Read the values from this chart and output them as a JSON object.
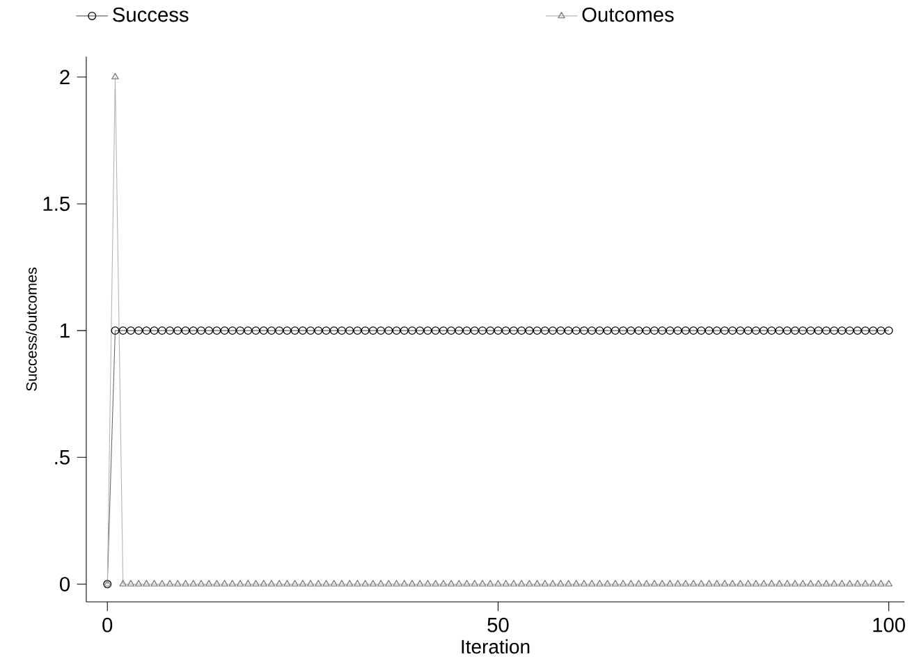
{
  "chart_data": {
    "type": "line",
    "xlabel": "Iteration",
    "ylabel": "Success/outcomes",
    "x": [
      0,
      1,
      2,
      3,
      4,
      5,
      6,
      7,
      8,
      9,
      10,
      11,
      12,
      13,
      14,
      15,
      16,
      17,
      18,
      19,
      20,
      21,
      22,
      23,
      24,
      25,
      26,
      27,
      28,
      29,
      30,
      31,
      32,
      33,
      34,
      35,
      36,
      37,
      38,
      39,
      40,
      41,
      42,
      43,
      44,
      45,
      46,
      47,
      48,
      49,
      50,
      51,
      52,
      53,
      54,
      55,
      56,
      57,
      58,
      59,
      60,
      61,
      62,
      63,
      64,
      65,
      66,
      67,
      68,
      69,
      70,
      71,
      72,
      73,
      74,
      75,
      76,
      77,
      78,
      79,
      80,
      81,
      82,
      83,
      84,
      85,
      86,
      87,
      88,
      89,
      90,
      91,
      92,
      93,
      94,
      95,
      96,
      97,
      98,
      99,
      100
    ],
    "series": [
      {
        "name": "Success",
        "color": "#000000",
        "marker": "circle",
        "values": [
          0,
          1,
          1,
          1,
          1,
          1,
          1,
          1,
          1,
          1,
          1,
          1,
          1,
          1,
          1,
          1,
          1,
          1,
          1,
          1,
          1,
          1,
          1,
          1,
          1,
          1,
          1,
          1,
          1,
          1,
          1,
          1,
          1,
          1,
          1,
          1,
          1,
          1,
          1,
          1,
          1,
          1,
          1,
          1,
          1,
          1,
          1,
          1,
          1,
          1,
          1,
          1,
          1,
          1,
          1,
          1,
          1,
          1,
          1,
          1,
          1,
          1,
          1,
          1,
          1,
          1,
          1,
          1,
          1,
          1,
          1,
          1,
          1,
          1,
          1,
          1,
          1,
          1,
          1,
          1,
          1,
          1,
          1,
          1,
          1,
          1,
          1,
          1,
          1,
          1,
          1,
          1,
          1,
          1,
          1,
          1,
          1,
          1,
          1,
          1,
          1
        ]
      },
      {
        "name": "Outcomes",
        "color": "#808080",
        "marker": "triangle",
        "values": [
          0,
          2,
          0,
          0,
          0,
          0,
          0,
          0,
          0,
          0,
          0,
          0,
          0,
          0,
          0,
          0,
          0,
          0,
          0,
          0,
          0,
          0,
          0,
          0,
          0,
          0,
          0,
          0,
          0,
          0,
          0,
          0,
          0,
          0,
          0,
          0,
          0,
          0,
          0,
          0,
          0,
          0,
          0,
          0,
          0,
          0,
          0,
          0,
          0,
          0,
          0,
          0,
          0,
          0,
          0,
          0,
          0,
          0,
          0,
          0,
          0,
          0,
          0,
          0,
          0,
          0,
          0,
          0,
          0,
          0,
          0,
          0,
          0,
          0,
          0,
          0,
          0,
          0,
          0,
          0,
          0,
          0,
          0,
          0,
          0,
          0,
          0,
          0,
          0,
          0,
          0,
          0,
          0,
          0,
          0,
          0,
          0,
          0,
          0,
          0,
          0
        ]
      }
    ],
    "xlim": [
      -2.7,
      102
    ],
    "xticks": [
      0,
      50,
      100
    ],
    "ylim": [
      -0.07,
      2.08
    ],
    "yticks": [
      0,
      {
        "value": 0.5,
        "label": ".5"
      },
      1,
      1.5,
      2
    ],
    "legend": "top",
    "grid": false
  }
}
